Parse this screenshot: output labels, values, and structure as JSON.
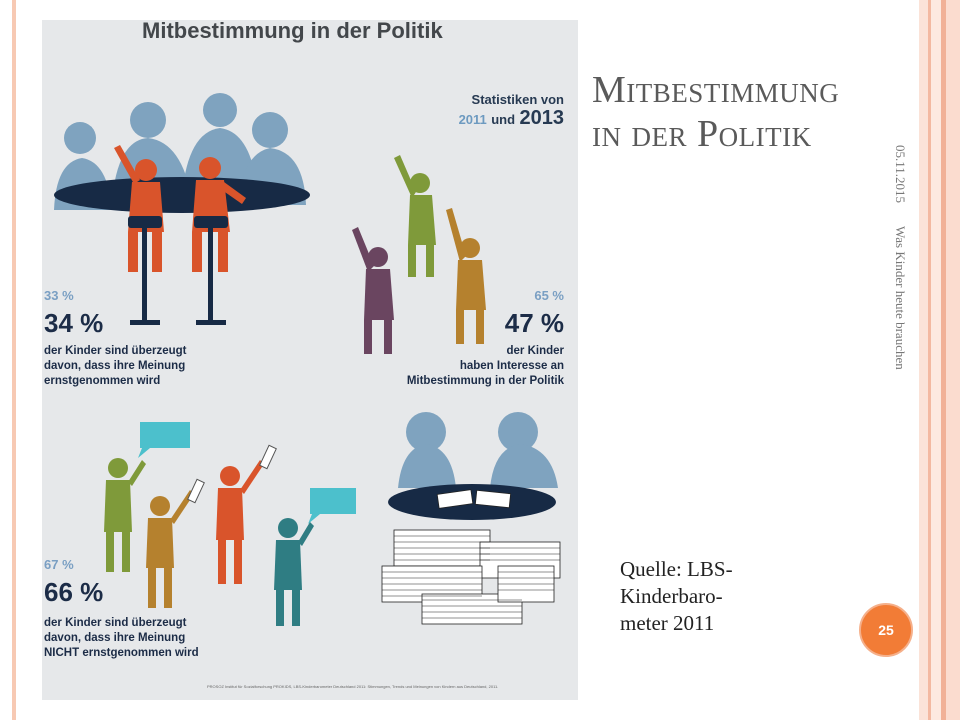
{
  "slide": {
    "title_line1": "Mitbestimmung",
    "title_line2": "in der Politik",
    "date": "05.11.2015",
    "footer": "Was Kinder heute brauchen",
    "source": "Quelle: LBS-\nKinderbaro-\nmeter 2011",
    "page_number": "25"
  },
  "infographic": {
    "title": "Mitbestimmung in der Politik",
    "stats_label": "Statistiken von",
    "year_2011": "2011",
    "and": "und",
    "year_2013": "2013",
    "stat1": {
      "value_2011": "33 %",
      "value_2013": "34 %",
      "caption_line1": "der Kinder sind überzeugt",
      "caption_line2": "davon, dass ihre Meinung",
      "caption_line3": "ernstgenommen wird"
    },
    "stat2": {
      "value_2011": "65 %",
      "value_2013": "47 %",
      "caption_line1": "der Kinder",
      "caption_line2": "haben Interesse an",
      "caption_line3": "Mitbestimmung in der Politik"
    },
    "stat3": {
      "value_2011": "67 %",
      "value_2013": "66 %",
      "caption_line1": "der Kinder sind überzeugt",
      "caption_line2": "davon, dass ihre Meinung",
      "caption_line3": "NICHT ernstgenommen wird"
    },
    "footnote": "PROSOZ Institut für Sozialforschung PROKIDS, LBS-Kinderbarometer Deutschland 2011: Stimmungen, Trends und Meinungen von Kindern aus Deutschland, 2011.",
    "colors": {
      "adult": "#7fa3bf",
      "table": "#172a45",
      "child_red": "#d9542b",
      "child_green": "#7f9a3a",
      "child_mustard": "#b5812e",
      "child_plum": "#6a4560",
      "child_teal": "#2f7d83",
      "bubble": "#4cc0cc"
    }
  }
}
